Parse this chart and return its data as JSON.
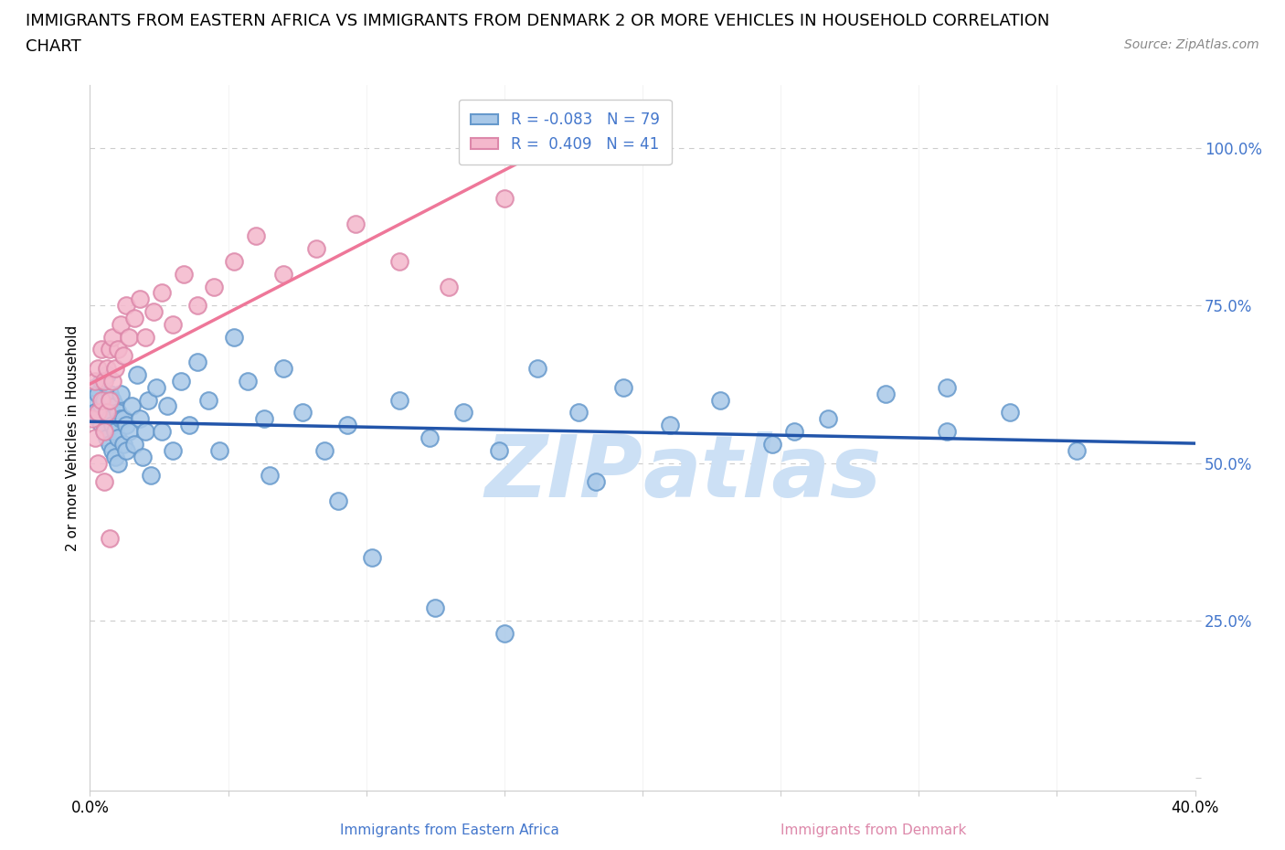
{
  "title_line1": "IMMIGRANTS FROM EASTERN AFRICA VS IMMIGRANTS FROM DENMARK 2 OR MORE VEHICLES IN HOUSEHOLD CORRELATION",
  "title_line2": "CHART",
  "source_text": "Source: ZipAtlas.com",
  "ylabel": "2 or more Vehicles in Household",
  "xlabel_blue": "Immigrants from Eastern Africa",
  "xlabel_pink": "Immigrants from Denmark",
  "xlim": [
    0.0,
    0.4
  ],
  "ylim": [
    -0.02,
    1.1
  ],
  "xticks": [
    0.0,
    0.05,
    0.1,
    0.15,
    0.2,
    0.25,
    0.3,
    0.35,
    0.4
  ],
  "yticks": [
    0.0,
    0.25,
    0.5,
    0.75,
    1.0
  ],
  "blue_R": -0.083,
  "blue_N": 79,
  "pink_R": 0.409,
  "pink_N": 41,
  "blue_color": "#a8c8e8",
  "blue_edge_color": "#6699cc",
  "pink_color": "#f4b8cc",
  "pink_edge_color": "#dd88aa",
  "blue_line_color": "#2255aa",
  "pink_line_color": "#ee7799",
  "watermark_color": "#cce0f5",
  "tick_label_color": "#4477cc",
  "background_color": "#ffffff",
  "grid_color": "#cccccc",
  "title_fontsize": 13,
  "axis_label_fontsize": 11,
  "tick_fontsize": 12,
  "legend_fontsize": 12,
  "source_fontsize": 10,
  "blue_x": [
    0.001,
    0.002,
    0.002,
    0.003,
    0.003,
    0.004,
    0.004,
    0.004,
    0.005,
    0.005,
    0.006,
    0.006,
    0.006,
    0.007,
    0.007,
    0.007,
    0.008,
    0.008,
    0.008,
    0.009,
    0.009,
    0.009,
    0.01,
    0.01,
    0.01,
    0.011,
    0.011,
    0.012,
    0.012,
    0.013,
    0.013,
    0.014,
    0.015,
    0.016,
    0.017,
    0.018,
    0.019,
    0.02,
    0.021,
    0.022,
    0.024,
    0.026,
    0.028,
    0.03,
    0.033,
    0.036,
    0.039,
    0.043,
    0.047,
    0.052,
    0.057,
    0.063,
    0.07,
    0.077,
    0.085,
    0.093,
    0.102,
    0.112,
    0.123,
    0.135,
    0.148,
    0.162,
    0.177,
    0.193,
    0.21,
    0.228,
    0.247,
    0.267,
    0.288,
    0.31,
    0.333,
    0.357,
    0.183,
    0.255,
    0.31,
    0.065,
    0.09,
    0.125,
    0.15
  ],
  "blue_y": [
    0.6,
    0.58,
    0.62,
    0.57,
    0.61,
    0.56,
    0.59,
    0.63,
    0.55,
    0.6,
    0.54,
    0.58,
    0.64,
    0.53,
    0.57,
    0.61,
    0.52,
    0.56,
    0.6,
    0.51,
    0.55,
    0.59,
    0.5,
    0.54,
    0.58,
    0.57,
    0.61,
    0.53,
    0.57,
    0.52,
    0.56,
    0.55,
    0.59,
    0.53,
    0.64,
    0.57,
    0.51,
    0.55,
    0.6,
    0.48,
    0.62,
    0.55,
    0.59,
    0.52,
    0.63,
    0.56,
    0.66,
    0.6,
    0.52,
    0.7,
    0.63,
    0.57,
    0.65,
    0.58,
    0.52,
    0.56,
    0.35,
    0.6,
    0.54,
    0.58,
    0.52,
    0.65,
    0.58,
    0.62,
    0.56,
    0.6,
    0.53,
    0.57,
    0.61,
    0.55,
    0.58,
    0.52,
    0.47,
    0.55,
    0.62,
    0.48,
    0.44,
    0.27,
    0.23
  ],
  "pink_x": [
    0.001,
    0.002,
    0.002,
    0.003,
    0.003,
    0.004,
    0.004,
    0.005,
    0.005,
    0.006,
    0.006,
    0.007,
    0.007,
    0.008,
    0.008,
    0.009,
    0.01,
    0.011,
    0.012,
    0.013,
    0.014,
    0.016,
    0.018,
    0.02,
    0.023,
    0.026,
    0.03,
    0.034,
    0.039,
    0.045,
    0.052,
    0.06,
    0.07,
    0.082,
    0.096,
    0.112,
    0.13,
    0.15,
    0.003,
    0.005,
    0.007
  ],
  "pink_y": [
    0.57,
    0.54,
    0.63,
    0.58,
    0.65,
    0.6,
    0.68,
    0.55,
    0.63,
    0.58,
    0.65,
    0.6,
    0.68,
    0.63,
    0.7,
    0.65,
    0.68,
    0.72,
    0.67,
    0.75,
    0.7,
    0.73,
    0.76,
    0.7,
    0.74,
    0.77,
    0.72,
    0.8,
    0.75,
    0.78,
    0.82,
    0.86,
    0.8,
    0.84,
    0.88,
    0.82,
    0.78,
    0.92,
    0.5,
    0.47,
    0.38
  ]
}
